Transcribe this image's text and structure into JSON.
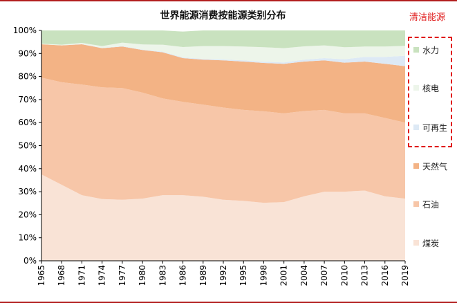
{
  "chart_data": {
    "type": "area",
    "stacked": true,
    "title": "世界能源消费按能源类别分布",
    "clean_energy_label": "清洁能源",
    "ylim": [
      0,
      100
    ],
    "y_ticks": [
      "0%",
      "10%",
      "20%",
      "30%",
      "40%",
      "50%",
      "60%",
      "70%",
      "80%",
      "90%",
      "100%"
    ],
    "x_ticks": [
      "1965",
      "1968",
      "1971",
      "1974",
      "1977",
      "1980",
      "1983",
      "1986",
      "1989",
      "1992",
      "1995",
      "1998",
      "2001",
      "2004",
      "2007",
      "2010",
      "2013",
      "2016",
      "2019"
    ],
    "x": [
      1965,
      1968,
      1971,
      1974,
      1977,
      1980,
      1983,
      1986,
      1989,
      1992,
      1995,
      1998,
      2001,
      2004,
      2007,
      2010,
      2013,
      2016,
      2019
    ],
    "series": [
      {
        "name": "煤炭",
        "color": "#f9e3d6",
        "values": [
          37.5,
          33,
          28.5,
          26.8,
          26.5,
          27,
          28.5,
          28.5,
          27.8,
          26.5,
          26,
          25.2,
          25.5,
          28,
          30,
          30,
          30.5,
          28,
          27
        ]
      },
      {
        "name": "石油",
        "color": "#f7c6a8",
        "values": [
          42,
          44.5,
          48,
          48.5,
          48.5,
          46,
          42,
          40.5,
          40,
          40,
          39.5,
          39.7,
          38.5,
          37,
          35.5,
          34,
          33.5,
          34,
          33
        ]
      },
      {
        "name": "天然气",
        "color": "#f3b385",
        "values": [
          14.5,
          16,
          17.5,
          17,
          18,
          18.5,
          20,
          19,
          19.5,
          20.5,
          21,
          21,
          21.5,
          21.5,
          21.5,
          22,
          22.5,
          23.5,
          24.5
        ]
      },
      {
        "name": "可再生",
        "color": "#dde9f5",
        "values": [
          0,
          0,
          0.1,
          0.1,
          0.2,
          0.2,
          0.3,
          0.3,
          0.4,
          0.4,
          0.5,
          0.5,
          0.6,
          0.8,
          1,
          1.5,
          2,
          3,
          4.5
        ]
      },
      {
        "name": "核电",
        "color": "#edf5ea",
        "values": [
          0.2,
          0.3,
          0.5,
          0.8,
          1.5,
          2.2,
          3,
          4.5,
          5.5,
          5.8,
          6,
          6.3,
          6.2,
          5.8,
          5.5,
          5.2,
          4.5,
          4.5,
          4.3
        ]
      },
      {
        "name": "水力",
        "color": "#c9e2bf",
        "values": [
          5.8,
          6.2,
          5.4,
          6.8,
          5.3,
          6.1,
          6.2,
          6.7,
          6.8,
          6.8,
          7,
          7.3,
          7.7,
          6.9,
          6.5,
          7.3,
          7,
          7,
          6.7
        ]
      }
    ],
    "legend_order": [
      "水力",
      "核电",
      "可再生",
      "天然气",
      "石油",
      "煤炭"
    ],
    "grid": false,
    "legend_position": "right"
  }
}
